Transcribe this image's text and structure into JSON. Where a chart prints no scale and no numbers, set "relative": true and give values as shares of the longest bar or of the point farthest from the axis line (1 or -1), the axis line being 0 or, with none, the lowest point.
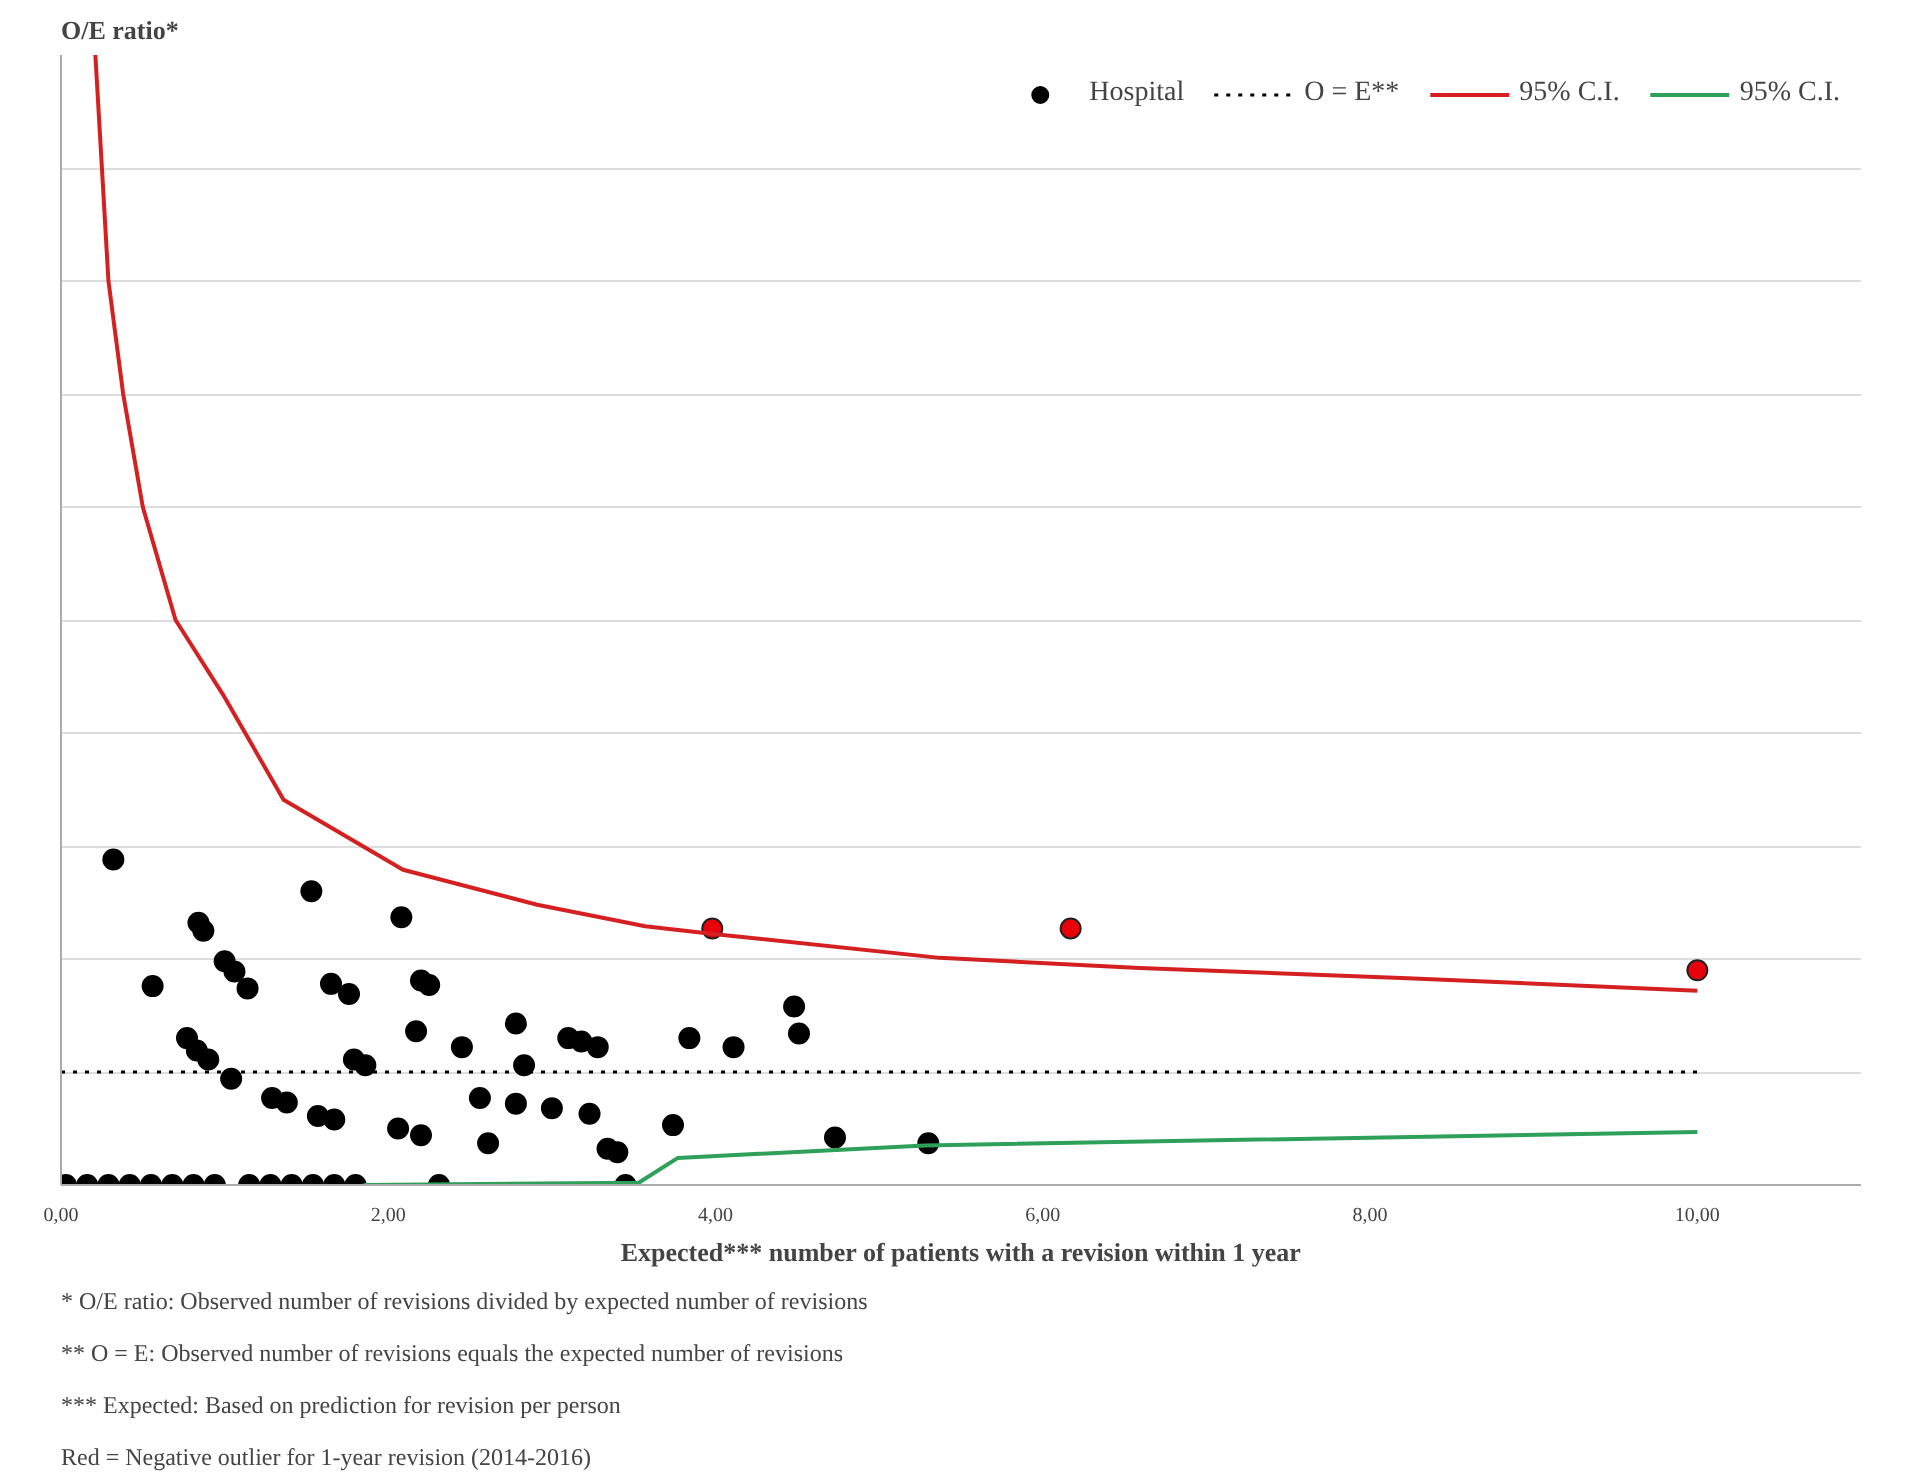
{
  "chart_data": {
    "type": "scatter",
    "ylabel": "O/E ratio*",
    "xlabel": "Expected*** number of patients with a revision within 1 year",
    "relative": true,
    "xlim": [
      0,
      11
    ],
    "xticks": [
      {
        "value": 0,
        "label": "0,00"
      },
      {
        "value": 2,
        "label": "2,00"
      },
      {
        "value": 4,
        "label": "4,00"
      },
      {
        "value": 6,
        "label": "6,00"
      },
      {
        "value": 8,
        "label": "8,00"
      },
      {
        "value": 10,
        "label": "10,00"
      }
    ],
    "grid": "y",
    "legend": "top right",
    "series": [
      {
        "name": "Hospital",
        "marker": "circle",
        "color": "#000000",
        "x": [
          0.03,
          0.16,
          0.29,
          0.42,
          0.55,
          0.68,
          0.81,
          0.94,
          1.15,
          1.28,
          1.41,
          1.54,
          1.67,
          1.8,
          0.32,
          0.56,
          0.84,
          0.87,
          1.0,
          1.06,
          1.14,
          0.77,
          0.83,
          0.9,
          1.04,
          1.29,
          1.38,
          1.53,
          1.57,
          1.67,
          1.65,
          1.76,
          1.79,
          1.86,
          2.08,
          2.06,
          2.2,
          2.2,
          2.25,
          2.17,
          2.31,
          2.45,
          2.56,
          2.61,
          2.78,
          2.83,
          2.78,
          3.0,
          3.1,
          3.18,
          3.28,
          3.23,
          3.34,
          3.4,
          3.45,
          3.74,
          3.84,
          4.11,
          4.48,
          4.51,
          4.73,
          5.3
        ],
        "values": [
          0,
          0,
          0,
          0,
          0,
          0,
          0,
          0,
          0,
          0,
          0,
          0,
          0,
          0,
          0.288,
          0.176,
          0.232,
          0.225,
          0.198,
          0.189,
          0.174,
          0.13,
          0.119,
          0.111,
          0.094,
          0.077,
          0.073,
          0.26,
          0.061,
          0.058,
          0.178,
          0.169,
          0.111,
          0.106,
          0.237,
          0.05,
          0.044,
          0.181,
          0.177,
          0.136,
          0,
          0.122,
          0.077,
          0.037,
          0.143,
          0.106,
          0.072,
          0.068,
          0.13,
          0.127,
          0.122,
          0.063,
          0.032,
          0.029,
          0,
          0.053,
          0.13,
          0.122,
          0.158,
          0.134,
          0.042,
          0.037
        ]
      },
      {
        "marker": "circle",
        "color": "#e8000b",
        "x": [
          3.98,
          6.17,
          10.0
        ],
        "values": [
          0.227,
          0.227,
          0.19
        ]
      },
      {
        "name": "O = E**",
        "type": "line",
        "line_style": "dotted",
        "marker": "none",
        "color": "#000000",
        "x": [
          0,
          10
        ],
        "values": [
          0.1,
          0.1
        ]
      },
      {
        "name": "95% C.I.",
        "type": "line",
        "line_style": "solid",
        "marker": "none",
        "color": "#d42020",
        "x": [
          0.21,
          0.29,
          0.38,
          0.5,
          0.7,
          0.99,
          1.36,
          2.09,
          2.91,
          3.57,
          4.0,
          5.37,
          6.59,
          8.23,
          10.0
        ],
        "values": [
          1.0,
          0.8,
          0.7,
          0.6,
          0.5,
          0.434,
          0.341,
          0.279,
          0.248,
          0.229,
          0.222,
          0.201,
          0.192,
          0.183,
          0.172
        ]
      },
      {
        "name": "95% C.I.",
        "type": "line",
        "line_style": "solid",
        "marker": "none",
        "color": "#2ea05a",
        "x": [
          1.85,
          3.53,
          3.77,
          5.28,
          10.0
        ],
        "values": [
          0,
          0.002,
          0.024,
          0.035,
          0.047
        ]
      }
    ],
    "annotations": [
      "* O/E ratio: Observed number of revisions divided by expected number of revisions",
      "** O = E: Observed number of revisions equals the expected number of revisions",
      "*** Expected: Based on prediction for revision per person",
      "Red = Negative outlier for 1-year revision (2014-2016)"
    ]
  }
}
